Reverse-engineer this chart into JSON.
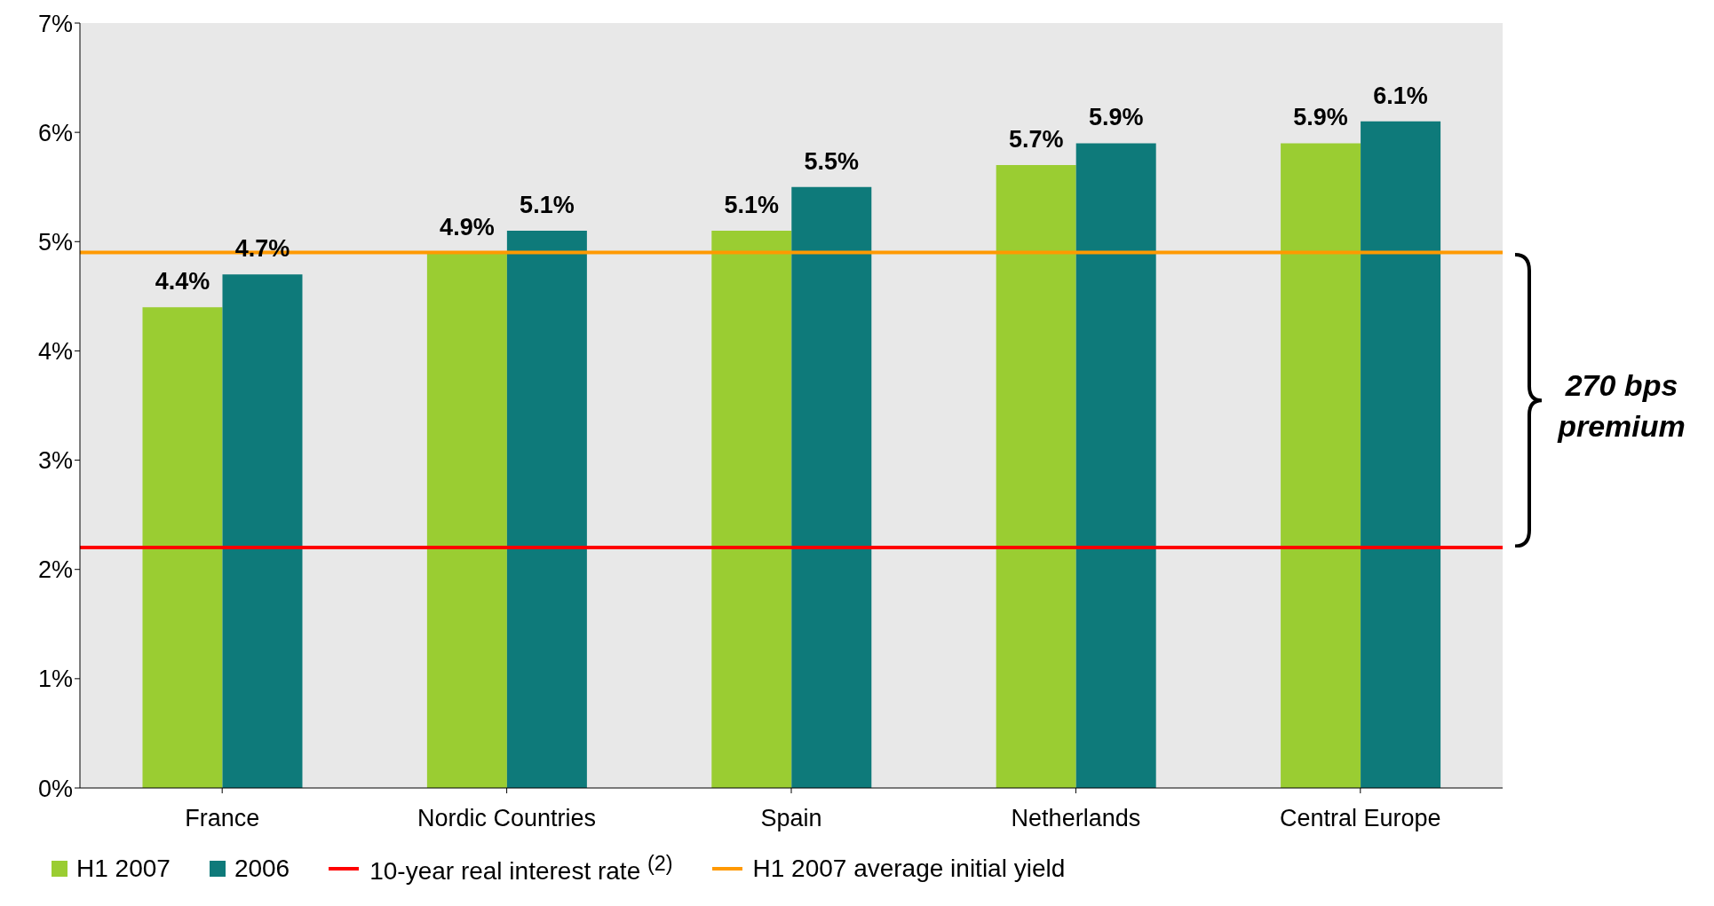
{
  "chart_data": {
    "type": "bar",
    "categories": [
      "France",
      "Nordic Countries",
      "Spain",
      "Netherlands",
      "Central Europe"
    ],
    "series": [
      {
        "name": "H1 2007",
        "color": "#9acd32",
        "values": [
          4.4,
          4.9,
          5.1,
          5.7,
          5.9
        ],
        "value_labels": [
          "4.4%",
          "4.9%",
          "5.1%",
          "5.7%",
          "5.9%"
        ]
      },
      {
        "name": "2006",
        "color": "#0e7a7a",
        "values": [
          4.7,
          5.1,
          5.5,
          5.9,
          6.1
        ],
        "value_labels": [
          "4.7%",
          "5.1%",
          "5.5%",
          "5.9%",
          "6.1%"
        ]
      }
    ],
    "ylim": [
      0,
      7
    ],
    "yticks": [
      {
        "value": 0,
        "label": "0%"
      },
      {
        "value": 1,
        "label": "1%"
      },
      {
        "value": 2,
        "label": "2%"
      },
      {
        "value": 3,
        "label": "3%"
      },
      {
        "value": 4,
        "label": "4%"
      },
      {
        "value": 5,
        "label": "5%"
      },
      {
        "value": 6,
        "label": "6%"
      },
      {
        "value": 7,
        "label": "7%"
      }
    ],
    "ref_lines": [
      {
        "axis": "y",
        "value": 2.2,
        "label": "10-year real interest rate $^{(2)}$",
        "color": "#ff0000"
      },
      {
        "axis": "y",
        "value": 4.9,
        "label": "H1 2007 average initial yield",
        "color": "#ff9900"
      }
    ],
    "annotations": [
      "270 bps premium"
    ],
    "legend": "bottom"
  }
}
